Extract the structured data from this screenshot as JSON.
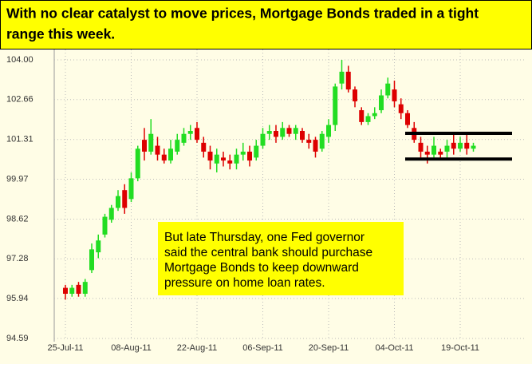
{
  "chart_data": {
    "type": "candlestick",
    "title": [
      "With no clear catalyst to move prices, Mortgage Bonds traded in a tight",
      "range this week."
    ],
    "annotation": [
      "But late Thursday, one Fed governor",
      "said the central bank should purchase",
      "Mortgage Bonds to keep downward",
      "pressure on home loan rates."
    ],
    "categories": [
      "25-Jul-11",
      null,
      null,
      null,
      null,
      null,
      null,
      null,
      null,
      null,
      "08-Aug-11",
      null,
      null,
      null,
      null,
      null,
      null,
      null,
      null,
      null,
      "22-Aug-11",
      null,
      null,
      null,
      null,
      null,
      null,
      null,
      null,
      null,
      "06-Sep-11",
      null,
      null,
      null,
      null,
      null,
      null,
      null,
      null,
      null,
      "20-Sep-11",
      null,
      null,
      null,
      null,
      null,
      null,
      null,
      null,
      null,
      "04-Oct-11",
      null,
      null,
      null,
      null,
      null,
      null,
      null,
      null,
      null,
      "19-Oct-11",
      null,
      null
    ],
    "open": [
      96.3,
      96.1,
      96.4,
      96.1,
      96.9,
      97.5,
      98.1,
      98.6,
      99.0,
      99.6,
      99.3,
      100.0,
      101.3,
      100.9,
      101.1,
      100.8,
      100.6,
      100.9,
      101.2,
      101.5,
      101.7,
      101.2,
      100.9,
      100.5,
      100.7,
      100.6,
      100.5,
      100.8,
      100.9,
      100.7,
      101.1,
      101.5,
      101.6,
      101.4,
      101.7,
      101.5,
      101.6,
      101.3,
      101.3,
      101.0,
      101.4,
      101.8,
      103.2,
      103.6,
      103.0,
      102.3,
      101.9,
      102.1,
      102.3,
      102.8,
      103.0,
      102.5,
      102.2,
      101.7,
      101.2,
      100.9,
      100.8,
      100.9,
      100.9,
      101.2,
      101.0,
      101.2,
      101.0
    ],
    "high": [
      96.4,
      96.4,
      96.5,
      96.6,
      97.8,
      98.1,
      98.8,
      99.1,
      99.6,
      99.8,
      100.2,
      101.1,
      101.7,
      102.0,
      101.4,
      101.0,
      101.3,
      101.5,
      101.7,
      101.8,
      101.9,
      101.4,
      101.1,
      101.0,
      100.9,
      100.8,
      101.0,
      101.2,
      101.1,
      101.3,
      101.7,
      101.8,
      101.8,
      101.9,
      101.8,
      101.8,
      101.7,
      101.5,
      101.4,
      101.6,
      102.0,
      103.2,
      104.0,
      103.8,
      103.1,
      102.4,
      102.2,
      102.4,
      103.0,
      103.4,
      103.3,
      102.7,
      102.3,
      101.9,
      101.4,
      101.1,
      101.4,
      101.0,
      101.3,
      101.5,
      101.4,
      101.5,
      101.2
    ],
    "low": [
      95.9,
      96.0,
      96.0,
      96.0,
      96.8,
      97.3,
      98.0,
      98.5,
      98.9,
      98.8,
      99.2,
      99.9,
      100.6,
      100.8,
      100.6,
      100.5,
      100.5,
      100.8,
      101.1,
      101.3,
      101.2,
      100.7,
      100.3,
      100.2,
      100.4,
      100.3,
      100.3,
      100.6,
      100.4,
      100.6,
      101.0,
      101.3,
      101.2,
      101.3,
      101.4,
      101.3,
      101.2,
      101.0,
      100.7,
      100.9,
      101.2,
      101.6,
      103.0,
      102.9,
      102.4,
      101.8,
      101.8,
      102.0,
      102.2,
      102.7,
      102.4,
      102.0,
      101.7,
      101.2,
      100.7,
      100.5,
      100.7,
      100.7,
      100.7,
      100.8,
      100.9,
      100.8,
      100.9
    ],
    "close": [
      96.1,
      96.3,
      96.1,
      96.5,
      97.6,
      97.9,
      98.7,
      99.0,
      99.4,
      99.0,
      100.0,
      101.0,
      100.9,
      101.5,
      100.8,
      100.6,
      101.0,
      101.3,
      101.5,
      101.6,
      101.3,
      100.9,
      100.6,
      100.8,
      100.6,
      100.5,
      100.8,
      100.9,
      100.6,
      101.1,
      101.5,
      101.6,
      101.4,
      101.7,
      101.5,
      101.7,
      101.3,
      101.2,
      100.9,
      101.5,
      101.8,
      103.1,
      103.6,
      103.0,
      102.6,
      101.9,
      102.1,
      102.2,
      102.8,
      103.2,
      102.6,
      102.2,
      101.8,
      101.3,
      100.9,
      100.8,
      101.1,
      100.8,
      101.1,
      101.0,
      101.2,
      101.0,
      101.1
    ],
    "up_color": "#22dd22",
    "down_color": "#dd0000",
    "range_lines": [
      101.52,
      100.65
    ],
    "ylim": [
      94.59,
      104.6
    ],
    "yticks": [
      {
        "value": 94.59,
        "label": "94.59"
      },
      {
        "value": 95.94,
        "label": "95.94"
      },
      {
        "value": 97.28,
        "label": "97.28"
      },
      {
        "value": 98.62,
        "label": "98.62"
      },
      {
        "value": 99.97,
        "label": "99.97"
      },
      {
        "value": 101.31,
        "label": "101.31"
      },
      {
        "value": 102.66,
        "label": "102.66"
      },
      {
        "value": 104.0,
        "label": "104.00"
      }
    ],
    "grid": true
  }
}
